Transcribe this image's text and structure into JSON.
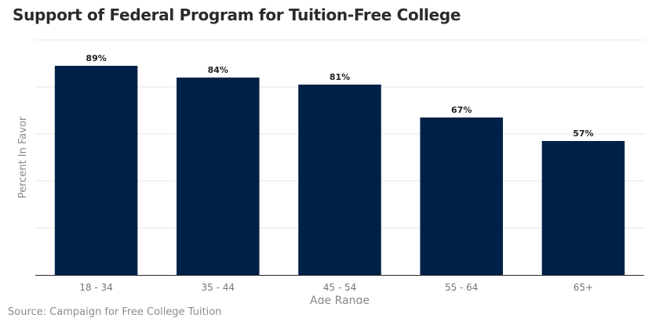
{
  "title": "Support of Federal Program for Tuition-Free College",
  "source": "Source: Campaign for Free College Tuition",
  "chart_data": {
    "type": "bar",
    "title": "Support of Federal Program for Tuition-Free College",
    "xlabel": "Age Range",
    "ylabel": "Percent In Favor",
    "categories": [
      "18 - 34",
      "35 - 44",
      "45 - 54",
      "55 - 64",
      "65+"
    ],
    "values": [
      89,
      84,
      81,
      67,
      57
    ],
    "value_labels": [
      "89%",
      "84%",
      "81%",
      "67%",
      "57%"
    ],
    "ylim": [
      0,
      100
    ],
    "grid": true,
    "legend": "none",
    "colors": {
      "bar": "#002147",
      "grid": "#e6e6e6",
      "axis": "#2b2b2b",
      "tick_text": "#777777",
      "axis_label": "#888888",
      "value_label": "#222222"
    }
  }
}
